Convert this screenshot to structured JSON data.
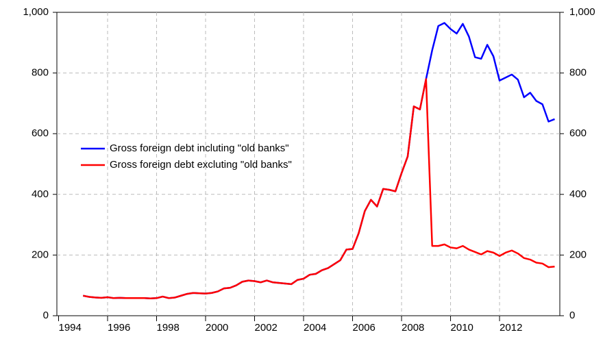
{
  "chart_data": {
    "type": "line",
    "x": [
      1995,
      1995.25,
      1995.5,
      1995.75,
      1996,
      1996.25,
      1996.5,
      1996.75,
      1997,
      1997.25,
      1997.5,
      1997.75,
      1998,
      1998.25,
      1998.5,
      1998.75,
      1999,
      1999.25,
      1999.5,
      1999.75,
      2000,
      2000.25,
      2000.5,
      2000.75,
      2001,
      2001.25,
      2001.5,
      2001.75,
      2002,
      2002.25,
      2002.5,
      2002.75,
      2003,
      2003.25,
      2003.5,
      2003.75,
      2004,
      2004.25,
      2004.5,
      2004.75,
      2005,
      2005.25,
      2005.5,
      2005.75,
      2006,
      2006.25,
      2006.5,
      2006.75,
      2007,
      2007.25,
      2007.5,
      2007.75,
      2008,
      2008.25,
      2008.5,
      2008.75,
      2009,
      2009.25,
      2009.5,
      2009.75,
      2010,
      2010.25,
      2010.5,
      2010.75,
      2011,
      2011.25,
      2011.5,
      2011.75,
      2012,
      2012.25,
      2012.5,
      2012.75,
      2013,
      2013.25,
      2013.5,
      2013.75,
      2014,
      2014.25
    ],
    "series": [
      {
        "name": "Gross foreign debt incluting \"old banks\"",
        "color": "#0000ff",
        "values": [
          66,
          62,
          60,
          59,
          61,
          58,
          59,
          58,
          58,
          58,
          58,
          57,
          58,
          63,
          58,
          60,
          66,
          72,
          75,
          74,
          73,
          75,
          80,
          90,
          92,
          100,
          112,
          116,
          114,
          110,
          116,
          110,
          108,
          106,
          104,
          118,
          122,
          135,
          138,
          150,
          157,
          170,
          183,
          218,
          220,
          272,
          345,
          382,
          360,
          418,
          415,
          410,
          470,
          525,
          690,
          680,
          780,
          875,
          955,
          965,
          945,
          930,
          962,
          920,
          852,
          847,
          893,
          855,
          775,
          785,
          795,
          778,
          720,
          735,
          708,
          697,
          640,
          648
        ]
      },
      {
        "name": "Gross foreign debt excluting \"old banks\"",
        "color": "#ff0000",
        "values": [
          66,
          62,
          60,
          59,
          61,
          58,
          59,
          58,
          58,
          58,
          58,
          57,
          58,
          63,
          58,
          60,
          66,
          72,
          75,
          74,
          73,
          75,
          80,
          90,
          92,
          100,
          112,
          116,
          114,
          110,
          116,
          110,
          108,
          106,
          104,
          118,
          122,
          135,
          138,
          150,
          157,
          170,
          183,
          218,
          220,
          272,
          345,
          382,
          360,
          418,
          415,
          410,
          470,
          525,
          690,
          680,
          780,
          230,
          230,
          235,
          225,
          222,
          230,
          218,
          210,
          202,
          213,
          208,
          197,
          208,
          215,
          205,
          190,
          185,
          175,
          172,
          160,
          162
        ]
      }
    ],
    "xlim": [
      1993.93,
      2014.46
    ],
    "xticks": [
      1994,
      1996,
      1998,
      2000,
      2002,
      2004,
      2006,
      2008,
      2010,
      2012
    ],
    "ylim": [
      0,
      1000
    ],
    "yticks": [
      0,
      200,
      400,
      600,
      800,
      {
        "value": 1000,
        "label": "1,000"
      }
    ],
    "y2lim": [
      0,
      1000
    ],
    "y2ticks": [
      0,
      200,
      400,
      600,
      800,
      {
        "value": 1000,
        "label": "1,000"
      }
    ],
    "grid": true
  }
}
